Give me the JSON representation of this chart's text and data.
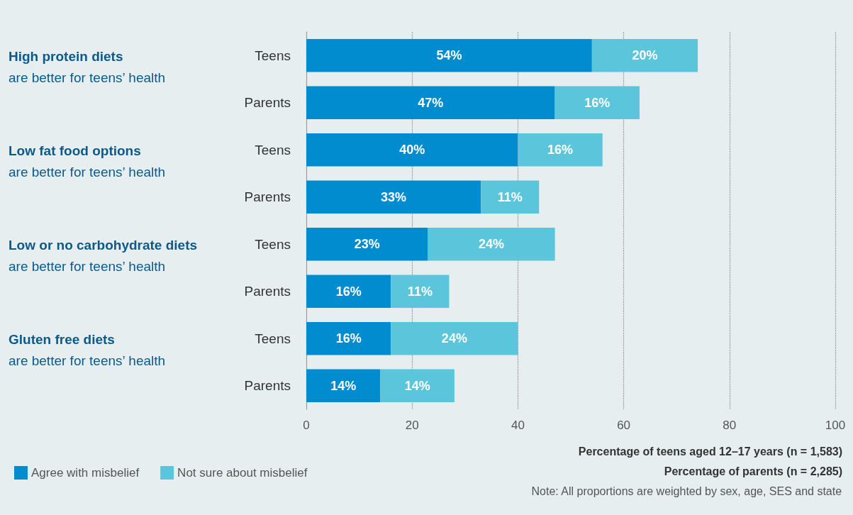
{
  "chart_data": {
    "type": "bar",
    "orientation": "horizontal",
    "stacked": true,
    "categories": [
      "Teens",
      "Parents",
      "Teens",
      "Parents",
      "Teens",
      "Parents",
      "Teens",
      "Parents"
    ],
    "series": [
      {
        "name": "Agree with misbelief",
        "color": "#008ccf",
        "values": [
          54,
          47,
          40,
          33,
          23,
          16,
          16,
          14
        ],
        "value_labels": [
          "54%",
          "47%",
          "40%",
          "33%",
          "23%",
          "16%",
          "16%",
          "14%"
        ]
      },
      {
        "name": "Not sure about misbelief",
        "color": "#5bc5db",
        "values": [
          20,
          16,
          16,
          11,
          24,
          11,
          24,
          14
        ],
        "value_labels": [
          "20%",
          "16%",
          "16%",
          "11%",
          "24%",
          "11%",
          "24%",
          "14%"
        ]
      }
    ],
    "xlim": [
      0,
      100
    ],
    "xticks": [
      0,
      20,
      40,
      60,
      80,
      100
    ],
    "grid": "x",
    "legend": "bottom left",
    "annotations": [
      "High protein diets",
      "are better for teens’ health",
      "Low fat food options",
      "are better for teens’ health",
      "Low or no carbohydrate diets",
      "are better for teens’ health",
      "Gluten free diets",
      "are better for teens’ health",
      "Percentage of teens aged 12–17 years (n = 1,583)",
      "Percentage of parents (n = 2,285)",
      "Note: All proportions are weighted by sex, age, SES and state"
    ]
  }
}
